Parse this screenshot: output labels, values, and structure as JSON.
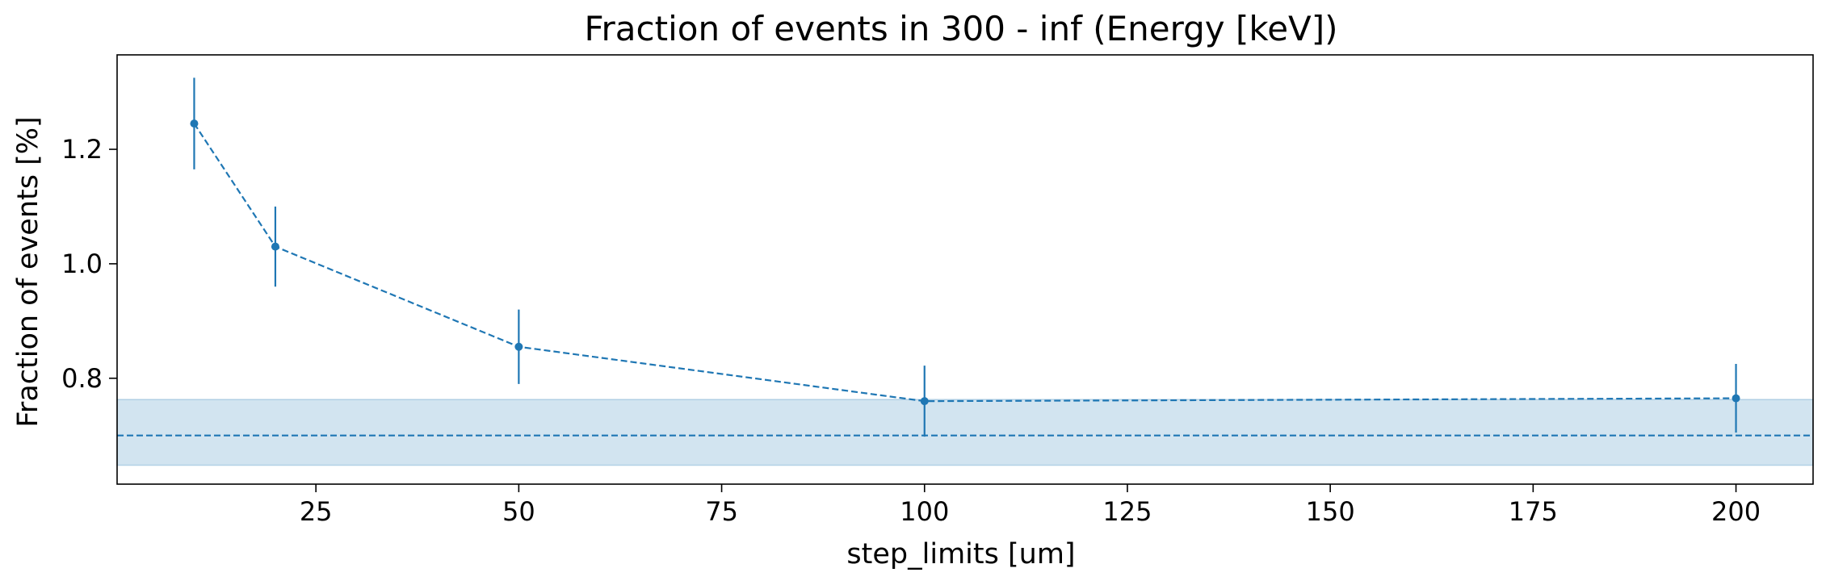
{
  "chart_data": {
    "type": "line",
    "title": "Fraction of events in 300 - inf (Energy [keV])",
    "xlabel": "step_limits [um]",
    "ylabel": "Fraction of events [%]",
    "xlim": [
      0.5,
      209.5
    ],
    "ylim": [
      0.615,
      1.365
    ],
    "xticks": [
      25,
      50,
      75,
      100,
      125,
      150,
      175,
      200
    ],
    "xtick_labels": [
      "25",
      "50",
      "75",
      "100",
      "125",
      "150",
      "175",
      "200"
    ],
    "yticks": [
      0.8,
      1.0,
      1.2
    ],
    "ytick_labels": [
      "0.8",
      "1.0",
      "1.2"
    ],
    "grid": false,
    "series": [
      {
        "x": [
          10,
          20,
          50,
          100,
          200
        ],
        "y": [
          1.245,
          1.03,
          0.855,
          0.76,
          0.765
        ],
        "yerr": [
          0.08,
          0.07,
          0.065,
          0.062,
          0.06
        ],
        "line_style": "dashed",
        "marker": "circle"
      }
    ],
    "reference": {
      "y": 0.7,
      "band": [
        0.648,
        0.763
      ],
      "line_style": "dashed"
    },
    "colors": {
      "series": "#1f77b4",
      "band": "#1f77b4",
      "axes": "#000000"
    }
  }
}
